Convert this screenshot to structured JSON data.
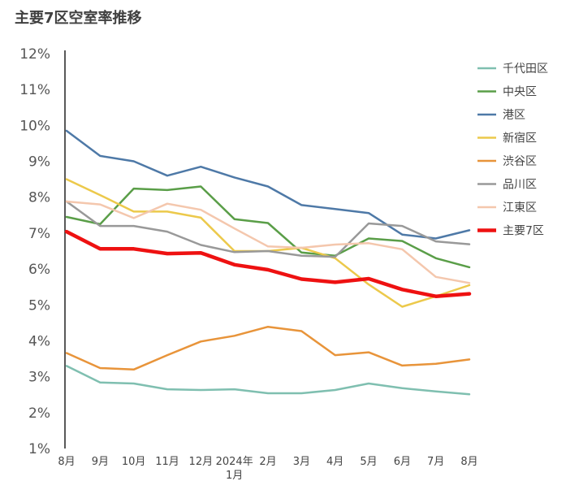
{
  "chart_data": {
    "type": "line",
    "title": "主要7区空室率推移",
    "xlabel": "",
    "ylabel": "",
    "ylim": [
      1,
      12
    ],
    "yticks": [
      "12%",
      "11%",
      "10%",
      "9%",
      "8%",
      "7%",
      "6%",
      "5%",
      "4%",
      "3%",
      "2%",
      "1%"
    ],
    "ytick_values": [
      12,
      11,
      10,
      9,
      8,
      7,
      6,
      5,
      4,
      3,
      2,
      1
    ],
    "categories": [
      "8月",
      "9月",
      "10月",
      "11月",
      "12月",
      "2024年\n1月",
      "2月",
      "3月",
      "4月",
      "5月",
      "6月",
      "7月",
      "8月"
    ],
    "legend_position": "right",
    "series": [
      {
        "name": "千代田区",
        "color": "#7fbfb0",
        "width": 2.5,
        "values": [
          3.3,
          2.84,
          2.81,
          2.65,
          2.63,
          2.65,
          2.54,
          2.54,
          2.63,
          2.81,
          2.68,
          2.59,
          2.51
        ]
      },
      {
        "name": "中央区",
        "color": "#5a9e48",
        "width": 2.5,
        "values": [
          7.45,
          7.25,
          8.24,
          8.2,
          8.3,
          7.39,
          7.28,
          6.46,
          6.37,
          6.85,
          6.78,
          6.3,
          6.05
        ]
      },
      {
        "name": "港区",
        "color": "#4e79a7",
        "width": 2.5,
        "values": [
          9.85,
          9.15,
          9.0,
          8.6,
          8.85,
          8.55,
          8.3,
          7.78,
          7.67,
          7.56,
          6.96,
          6.85,
          7.08
        ]
      },
      {
        "name": "新宿区",
        "color": "#ecc94b",
        "width": 2.5,
        "values": [
          8.5,
          8.06,
          7.6,
          7.6,
          7.43,
          6.5,
          6.5,
          6.59,
          6.3,
          5.57,
          4.95,
          5.24,
          5.55
        ]
      },
      {
        "name": "渋谷区",
        "color": "#e8943a",
        "width": 2.5,
        "values": [
          3.66,
          3.24,
          3.2,
          3.6,
          3.98,
          4.14,
          4.39,
          4.27,
          3.6,
          3.68,
          3.31,
          3.36,
          3.48
        ]
      },
      {
        "name": "品川区",
        "color": "#999999",
        "width": 2.5,
        "values": [
          7.88,
          7.2,
          7.2,
          7.04,
          6.67,
          6.47,
          6.5,
          6.37,
          6.34,
          7.27,
          7.2,
          6.77,
          6.69
        ]
      },
      {
        "name": "江東区",
        "color": "#f4c7ad",
        "width": 2.5,
        "values": [
          7.88,
          7.8,
          7.42,
          7.82,
          7.65,
          7.13,
          6.63,
          6.59,
          6.68,
          6.72,
          6.55,
          5.78,
          5.61
        ]
      },
      {
        "name": "主要7区",
        "color": "#ee1111",
        "width": 4.5,
        "values": [
          7.04,
          6.56,
          6.56,
          6.43,
          6.45,
          6.12,
          5.98,
          5.72,
          5.63,
          5.73,
          5.43,
          5.24,
          5.31
        ]
      }
    ]
  }
}
